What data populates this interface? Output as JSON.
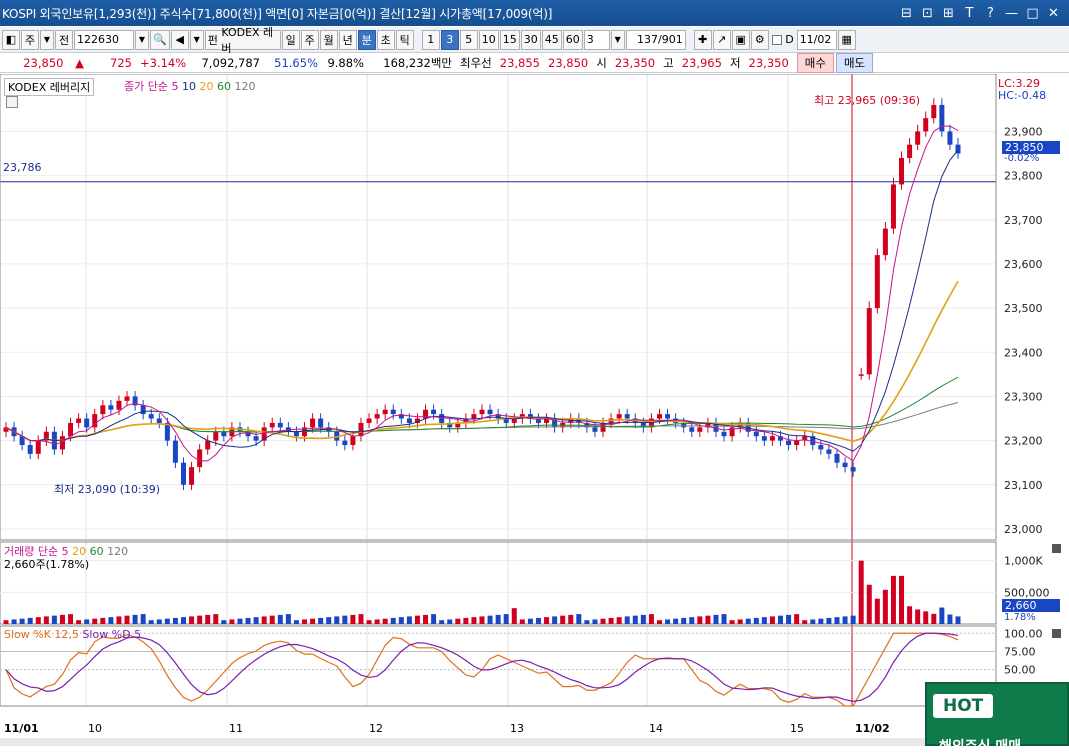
{
  "title": {
    "text": "KOSPI 외국인보유[1,293(천)] 주식수[71,800(천)] 액면[0] 자본금[0(억)] 결산[12월] 시가총액[17,009(억)]",
    "controls": [
      "⊟",
      "⊡",
      "⊞",
      "T",
      "?",
      "—",
      "□",
      "✕"
    ]
  },
  "toolbar": {
    "mode": "주",
    "prev_label": "전",
    "code": "122630",
    "name": "KODEX 레버",
    "name_prefix": "펀",
    "periods": [
      "일",
      "주",
      "월",
      "년",
      "분",
      "초",
      "틱"
    ],
    "selected_period": "분",
    "intervals": [
      "1",
      "3",
      "5",
      "10",
      "15",
      "30",
      "45",
      "60"
    ],
    "selected_interval": "3",
    "interval_value": "3",
    "count": "137",
    "count_total": "/901",
    "date": "11/02",
    "d_label": "D"
  },
  "info": {
    "price": "23,850",
    "arrow": "▲",
    "change": "725",
    "change_pct": "+3.14%",
    "volume": "7,092,787",
    "ratio1": "51.65%",
    "ratio2": "9.88%",
    "amount": "168,232백만",
    "best_label": "최우선",
    "best_ask": "23,855",
    "best_bid": "23,850",
    "open_label": "시",
    "open": "23,350",
    "high_label": "고",
    "high": "23,965",
    "low_label": "저",
    "low": "23,350",
    "buy_label": "매수",
    "sell_label": "매도"
  },
  "price_panel": {
    "name": "KODEX 레버리지",
    "ma_legend": [
      "종가 단순 5",
      "10",
      "20",
      "60",
      "120"
    ],
    "ma_colors": [
      "#c4158b",
      "#1a2d8f",
      "#e1a013",
      "#1f8a2e",
      "#7a7a7a"
    ],
    "lc": "LC:3.29",
    "hc": "HC:-0.48",
    "high_annot": "최고 23,965 (09:36)",
    "low_annot": "최저 23,090 (10:39)",
    "hline_label": "23,786",
    "current_tag": "23,850",
    "current_pct": "-0.02%"
  },
  "volume_panel": {
    "legend_name": "거래량",
    "legend_ma": [
      "단순 5",
      "20",
      "60",
      "120"
    ],
    "last": "2,660주(1.78%)",
    "tag": "2,660",
    "tag_pct": "1.78%"
  },
  "stoch_panel": {
    "legend": [
      "Slow %K 12,5",
      "Slow %D 5"
    ]
  },
  "x_axis": [
    "11/01",
    "10",
    "11",
    "12",
    "13",
    "14",
    "15",
    "11/02"
  ],
  "hot_banner": {
    "tag": "HOT",
    "text": "해외주식 매매"
  },
  "chart_data": [
    {
      "type": "candlestick",
      "title": "KODEX 레버리지",
      "x": [
        "11/01",
        "10",
        "11",
        "12",
        "13",
        "14",
        "15",
        "11/02"
      ],
      "yticks": [
        23000,
        23100,
        23200,
        23300,
        23400,
        23500,
        23600,
        23700,
        23800,
        23900
      ],
      "ylim": [
        22975,
        24030
      ],
      "reference_line": 23786,
      "closes": [
        23230,
        23210,
        23190,
        23170,
        23200,
        23220,
        23180,
        23210,
        23240,
        23250,
        23230,
        23260,
        23280,
        23270,
        23290,
        23300,
        23280,
        23260,
        23250,
        23240,
        23200,
        23150,
        23100,
        23140,
        23180,
        23200,
        23220,
        23210,
        23230,
        23220,
        23210,
        23200,
        23230,
        23240,
        23230,
        23220,
        23210,
        23230,
        23250,
        23230,
        23220,
        23200,
        23190,
        23210,
        23240,
        23250,
        23260,
        23270,
        23260,
        23250,
        23240,
        23250,
        23270,
        23260,
        23240,
        23230,
        23240,
        23250,
        23260,
        23270,
        23260,
        23250,
        23240,
        23250,
        23260,
        23250,
        23240,
        23250,
        23230,
        23240,
        23250,
        23240,
        23230,
        23220,
        23240,
        23250,
        23260,
        23250,
        23240,
        23230,
        23250,
        23260,
        23250,
        23240,
        23230,
        23220,
        23230,
        23240,
        23220,
        23210,
        23230,
        23240,
        23220,
        23210,
        23200,
        23210,
        23200,
        23190,
        23200,
        23210,
        23190,
        23180,
        23170,
        23150,
        23140,
        23130,
        23350,
        23500,
        23620,
        23680,
        23780,
        23840,
        23870,
        23900,
        23930,
        23960,
        23900,
        23870,
        23850
      ],
      "high": 23965,
      "low": 23090
    },
    {
      "type": "bar",
      "title": "거래량",
      "yticks": [
        500000,
        1000000
      ],
      "ylim": [
        0,
        1200000
      ]
    },
    {
      "type": "line",
      "title": "Slow %K 12,5 / Slow %D 5",
      "yticks": [
        50,
        75,
        100
      ],
      "ylim": [
        0,
        110
      ]
    }
  ]
}
